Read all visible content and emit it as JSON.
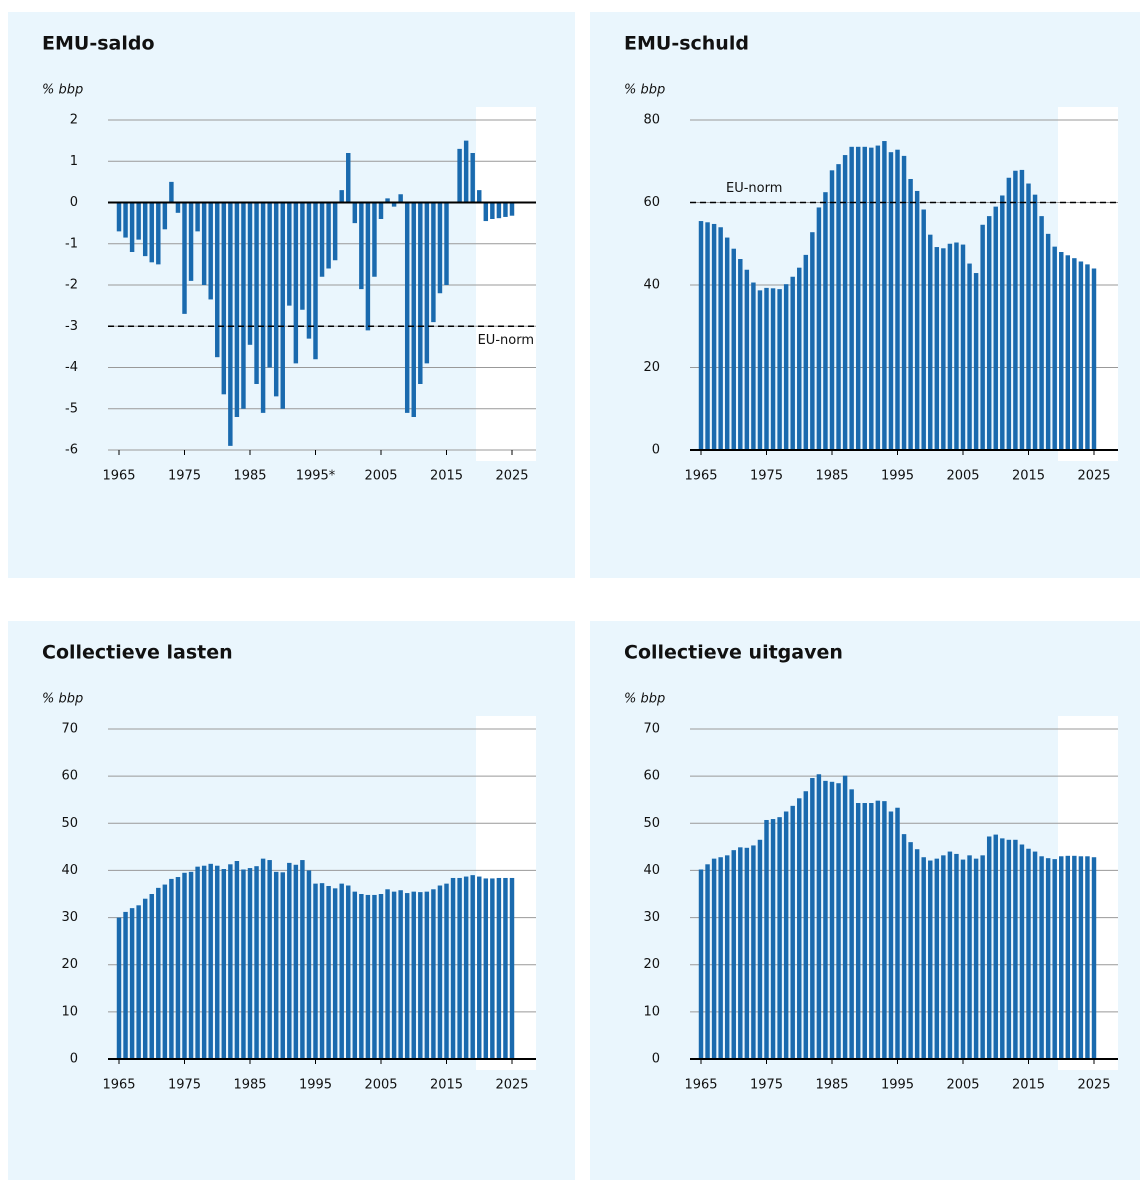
{
  "chart_data": [
    {
      "type": "bar",
      "title": "EMU-saldo",
      "y_label": "% bbp",
      "color": "#1a6aae",
      "categories": [
        "1965",
        null,
        null,
        null,
        null,
        null,
        null,
        null,
        null,
        null,
        "1975",
        null,
        null,
        null,
        null,
        null,
        null,
        null,
        null,
        null,
        "1985",
        null,
        null,
        null,
        null,
        null,
        null,
        null,
        null,
        null,
        "1995*",
        null,
        null,
        null,
        null,
        null,
        null,
        null,
        null,
        null,
        "2005",
        null,
        null,
        null,
        null,
        null,
        null,
        null,
        null,
        null,
        "2015",
        null,
        null,
        null,
        null,
        null,
        null,
        null,
        null,
        null,
        "2025"
      ],
      "values": [
        -0.7,
        -0.85,
        -1.2,
        -0.9,
        -1.3,
        -1.45,
        -1.5,
        -0.65,
        0.5,
        -0.25,
        -2.7,
        -1.9,
        -0.7,
        -2.0,
        -2.35,
        -3.75,
        -4.65,
        -5.9,
        -5.2,
        -5.0,
        -3.45,
        -4.4,
        -5.1,
        -4.0,
        -4.7,
        -5.0,
        -2.5,
        -3.9,
        -2.6,
        -3.3,
        -3.8,
        -1.8,
        -1.6,
        -1.4,
        0.3,
        1.2,
        -0.5,
        -2.1,
        -3.1,
        -1.8,
        -0.4,
        0.1,
        -0.1,
        0.2,
        -5.1,
        -5.2,
        -4.4,
        -3.9,
        -2.9,
        -2.2,
        -2.0,
        0.0,
        1.3,
        1.5,
        1.2,
        0.3,
        -0.45,
        -0.4,
        -0.38,
        -0.35,
        -0.32
      ],
      "ylim": [
        -6,
        2
      ],
      "yticks": [
        2,
        1,
        0,
        -1,
        -2,
        -3,
        -4,
        -5,
        -6
      ],
      "grid": true,
      "reference_line": {
        "value": -3,
        "label": "EU-norm"
      }
    },
    {
      "type": "bar",
      "title": "EMU-schuld",
      "y_label": "% bbp",
      "color": "#1a6aae",
      "categories": [
        "1965",
        null,
        null,
        null,
        null,
        null,
        null,
        null,
        null,
        null,
        "1975",
        null,
        null,
        null,
        null,
        null,
        null,
        null,
        null,
        null,
        "1985",
        null,
        null,
        null,
        null,
        null,
        null,
        null,
        null,
        null,
        "1995",
        null,
        null,
        null,
        null,
        null,
        null,
        null,
        null,
        null,
        "2005",
        null,
        null,
        null,
        null,
        null,
        null,
        null,
        null,
        null,
        "2015",
        null,
        null,
        null,
        null,
        null,
        null,
        null,
        null,
        null,
        "2025"
      ],
      "values": [
        55.5,
        55.2,
        54.8,
        54,
        51.5,
        48.8,
        46.3,
        43.7,
        40.6,
        38.7,
        39.3,
        39.2,
        39,
        40.2,
        42,
        44.2,
        47.3,
        52.8,
        58.8,
        62.5,
        67.8,
        69.3,
        71.5,
        73.5,
        73.5,
        73.5,
        73.3,
        73.8,
        74.9,
        72.2,
        72.8,
        71.3,
        65.7,
        62.8,
        58.3,
        52.2,
        49.2,
        48.9,
        50,
        50.3,
        49.8,
        45.2,
        42.9,
        54.6,
        56.7,
        59,
        61.7,
        66,
        67.7,
        67.9,
        64.6,
        61.9,
        56.7,
        52.4,
        49.3,
        48,
        47.2,
        46.5,
        45.7,
        45,
        44
      ],
      "ylim": [
        0,
        80
      ],
      "yticks": [
        80,
        60,
        40,
        20,
        0
      ],
      "grid": true,
      "reference_line": {
        "value": 60,
        "label": "EU-norm"
      }
    },
    {
      "type": "bar",
      "title": "Collectieve lasten",
      "y_label": "% bbp",
      "color": "#1a6aae",
      "categories": [
        "1965",
        null,
        null,
        null,
        null,
        null,
        null,
        null,
        null,
        null,
        "1975",
        null,
        null,
        null,
        null,
        null,
        null,
        null,
        null,
        null,
        "1985",
        null,
        null,
        null,
        null,
        null,
        null,
        null,
        null,
        null,
        "1995",
        null,
        null,
        null,
        null,
        null,
        null,
        null,
        null,
        null,
        "2005",
        null,
        null,
        null,
        null,
        null,
        null,
        null,
        null,
        null,
        "2015",
        null,
        null,
        null,
        null,
        null,
        null,
        null,
        null,
        null,
        "2025"
      ],
      "values": [
        30,
        31.2,
        32,
        32.6,
        34,
        35,
        36.3,
        37,
        38.2,
        38.6,
        39.5,
        39.7,
        40.8,
        41,
        41.4,
        41,
        40.3,
        41.3,
        42,
        40.2,
        40.5,
        40.9,
        42.5,
        42.2,
        39.7,
        39.6,
        41.6,
        41.2,
        42.2,
        40,
        37.2,
        37.3,
        36.7,
        36.2,
        37.2,
        36.8,
        35.5,
        35,
        34.8,
        34.8,
        35,
        36,
        35.5,
        35.8,
        35.2,
        35.5,
        35.4,
        35.5,
        36,
        36.8,
        37.2,
        38.4,
        38.4,
        38.7,
        39,
        38.7,
        38.3,
        38.3,
        38.4,
        38.4,
        38.4
      ],
      "ylim": [
        0,
        70
      ],
      "yticks": [
        70,
        60,
        50,
        40,
        30,
        20,
        10,
        0
      ],
      "grid": true
    },
    {
      "type": "bar",
      "title": "Collectieve uitgaven",
      "y_label": "% bbp",
      "color": "#1a6aae",
      "categories": [
        "1965",
        null,
        null,
        null,
        null,
        null,
        null,
        null,
        null,
        null,
        "1975",
        null,
        null,
        null,
        null,
        null,
        null,
        null,
        null,
        null,
        "1985",
        null,
        null,
        null,
        null,
        null,
        null,
        null,
        null,
        null,
        "1995",
        null,
        null,
        null,
        null,
        null,
        null,
        null,
        null,
        null,
        "2005",
        null,
        null,
        null,
        null,
        null,
        null,
        null,
        null,
        null,
        "2015",
        null,
        null,
        null,
        null,
        null,
        null,
        null,
        null,
        null,
        "2025"
      ],
      "values": [
        40.2,
        41.3,
        42.5,
        42.8,
        43.2,
        44.3,
        44.9,
        44.8,
        45.3,
        46.5,
        50.7,
        50.9,
        51.3,
        52.5,
        53.7,
        55.3,
        56.8,
        59.6,
        60.4,
        59,
        58.8,
        58.5,
        60.1,
        57.2,
        54.3,
        54.3,
        54.3,
        54.8,
        54.7,
        52.5,
        53.3,
        47.7,
        46,
        44.5,
        42.8,
        42.1,
        42.5,
        43.2,
        44,
        43.5,
        42.3,
        43.2,
        42.5,
        43.2,
        47.2,
        47.6,
        46.8,
        46.5,
        46.5,
        45.5,
        44.6,
        44,
        43,
        42.6,
        42.4,
        43,
        43.1,
        43.1,
        43,
        43,
        42.8
      ],
      "ylim": [
        0,
        70
      ],
      "yticks": [
        70,
        60,
        50,
        40,
        30,
        20,
        10,
        0
      ],
      "grid": true
    }
  ]
}
